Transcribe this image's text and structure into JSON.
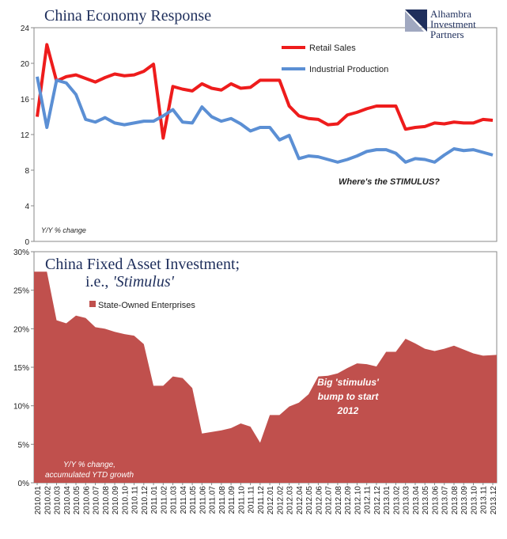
{
  "chart_data": [
    {
      "type": "line",
      "title": "China Economy Response",
      "logo": [
        "Alhambra",
        "Investment",
        "Partners"
      ],
      "ylim": [
        0,
        24
      ],
      "yticks": [
        0,
        4,
        8,
        12,
        16,
        20,
        24
      ],
      "axis_note": "Y/Y % change",
      "annotation": "Where's the STIMULUS?",
      "series": [
        {
          "name": "Retail Sales",
          "color": "#ee1c1c",
          "values": [
            14.0,
            22.1,
            18.0,
            18.5,
            18.7,
            18.3,
            17.9,
            18.4,
            18.8,
            18.6,
            18.7,
            19.1,
            19.9,
            11.6,
            17.4,
            17.1,
            16.9,
            17.7,
            17.2,
            17.0,
            17.7,
            17.2,
            17.3,
            18.1,
            18.1,
            18.1,
            15.2,
            14.1,
            13.8,
            13.7,
            13.1,
            13.2,
            14.2,
            14.5,
            14.9,
            15.2,
            15.2,
            15.2,
            12.6,
            12.8,
            12.9,
            13.3,
            13.2,
            13.4,
            13.3,
            13.3,
            13.7,
            13.6
          ]
        },
        {
          "name": "Industrial Production",
          "color": "#5b8fd4",
          "values": [
            18.5,
            12.8,
            18.1,
            17.8,
            16.5,
            13.7,
            13.4,
            13.9,
            13.3,
            13.1,
            13.3,
            13.5,
            13.5,
            14.1,
            14.8,
            13.4,
            13.3,
            15.1,
            14.0,
            13.5,
            13.8,
            13.2,
            12.4,
            12.8,
            12.8,
            11.4,
            11.9,
            9.3,
            9.6,
            9.5,
            9.2,
            8.9,
            9.2,
            9.6,
            10.1,
            10.3,
            10.3,
            9.9,
            8.9,
            9.3,
            9.2,
            8.9,
            9.7,
            10.4,
            10.2,
            10.3,
            10.0,
            9.7
          ]
        }
      ]
    },
    {
      "type": "area",
      "title": "China Fixed Asset Investment;",
      "subtitle": [
        "i.e.,",
        "'Stimulus'"
      ],
      "categories": [
        "2010.01",
        "2010.02",
        "2010.03",
        "2010.04",
        "2010.05",
        "2010.06",
        "2010.07",
        "2010.08",
        "2010.09",
        "2010.10",
        "2010.11",
        "2010.12",
        "2011.01",
        "2011.02",
        "2011.03",
        "2011.04",
        "2011.05",
        "2011.06",
        "2011.07",
        "2011.08",
        "2011.09",
        "2011.10",
        "2011.11",
        "2011.12",
        "2012.01",
        "2012.02",
        "2012.03",
        "2012.04",
        "2012.05",
        "2012.06",
        "2012.07",
        "2012.08",
        "2012.09",
        "2012.10",
        "2012.11",
        "2012.12",
        "2013.01",
        "2013.02",
        "2013.03",
        "2013.04",
        "2013.05",
        "2013.06",
        "2013.07",
        "2013.08",
        "2013.09",
        "2013.10",
        "2013.11",
        "2013.12"
      ],
      "ylim": [
        0,
        30
      ],
      "yticks": [
        {
          "value": 0,
          "label": "0%"
        },
        {
          "value": 5,
          "label": "5%"
        },
        {
          "value": 10,
          "label": "10%"
        },
        {
          "value": 15,
          "label": "15%"
        },
        {
          "value": 20,
          "label": "20%"
        },
        {
          "value": 25,
          "label": "25%"
        },
        {
          "value": 30,
          "label": "30%"
        }
      ],
      "annotation": [
        "Big 'stimulus'",
        "bump to start",
        "2012"
      ],
      "axis_note": [
        "Y/Y % change,",
        "accumulated YTD growth"
      ],
      "series": [
        {
          "name": "State-Owned Enterprises",
          "color": "#c0504d",
          "values": [
            27.4,
            27.4,
            21.1,
            20.7,
            21.7,
            21.4,
            20.2,
            20.0,
            19.6,
            19.3,
            19.1,
            18.0,
            12.6,
            12.6,
            13.8,
            13.6,
            12.3,
            6.4,
            6.6,
            6.8,
            7.1,
            7.7,
            7.3,
            5.2,
            8.8,
            8.8,
            9.9,
            10.4,
            11.5,
            13.8,
            13.9,
            14.2,
            14.9,
            15.5,
            15.4,
            15.1,
            17.0,
            17.0,
            18.7,
            18.1,
            17.4,
            17.1,
            17.4,
            17.8,
            17.3,
            16.8,
            16.5,
            16.6
          ]
        }
      ]
    }
  ]
}
